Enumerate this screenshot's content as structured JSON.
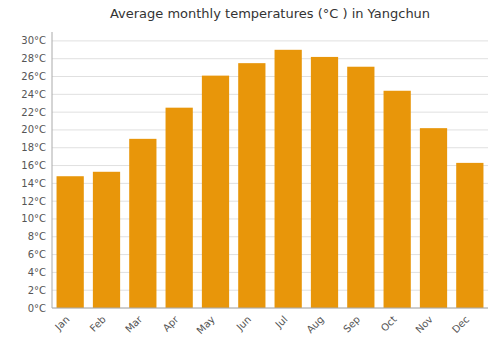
{
  "chart_data": {
    "type": "bar",
    "title": "Average monthly temperatures (°C ) in Yangchun",
    "categories": [
      "Jan",
      "Feb",
      "Mar",
      "Apr",
      "May",
      "Jun",
      "Jul",
      "Aug",
      "Sep",
      "Oct",
      "Nov",
      "Dec"
    ],
    "values": [
      14.8,
      15.3,
      19.0,
      22.5,
      26.1,
      27.5,
      29.0,
      28.2,
      27.1,
      24.4,
      20.2,
      16.3
    ],
    "color": "#E8960A",
    "ylim": [
      0,
      31
    ],
    "yticks": [
      {
        "value": 0,
        "label": "0°C"
      },
      {
        "value": 2,
        "label": "2°C"
      },
      {
        "value": 4,
        "label": "4°C"
      },
      {
        "value": 6,
        "label": "6°C"
      },
      {
        "value": 8,
        "label": "8°C"
      },
      {
        "value": 10,
        "label": "10°C"
      },
      {
        "value": 12,
        "label": "12°C"
      },
      {
        "value": 14,
        "label": "14°C"
      },
      {
        "value": 16,
        "label": "16°C"
      },
      {
        "value": 18,
        "label": "18°C"
      },
      {
        "value": 20,
        "label": "20°C"
      },
      {
        "value": 22,
        "label": "22°C"
      },
      {
        "value": 24,
        "label": "24°C"
      },
      {
        "value": 26,
        "label": "26°C"
      },
      {
        "value": 28,
        "label": "28°C"
      },
      {
        "value": 30,
        "label": "30°C"
      }
    ],
    "grid": true
  }
}
